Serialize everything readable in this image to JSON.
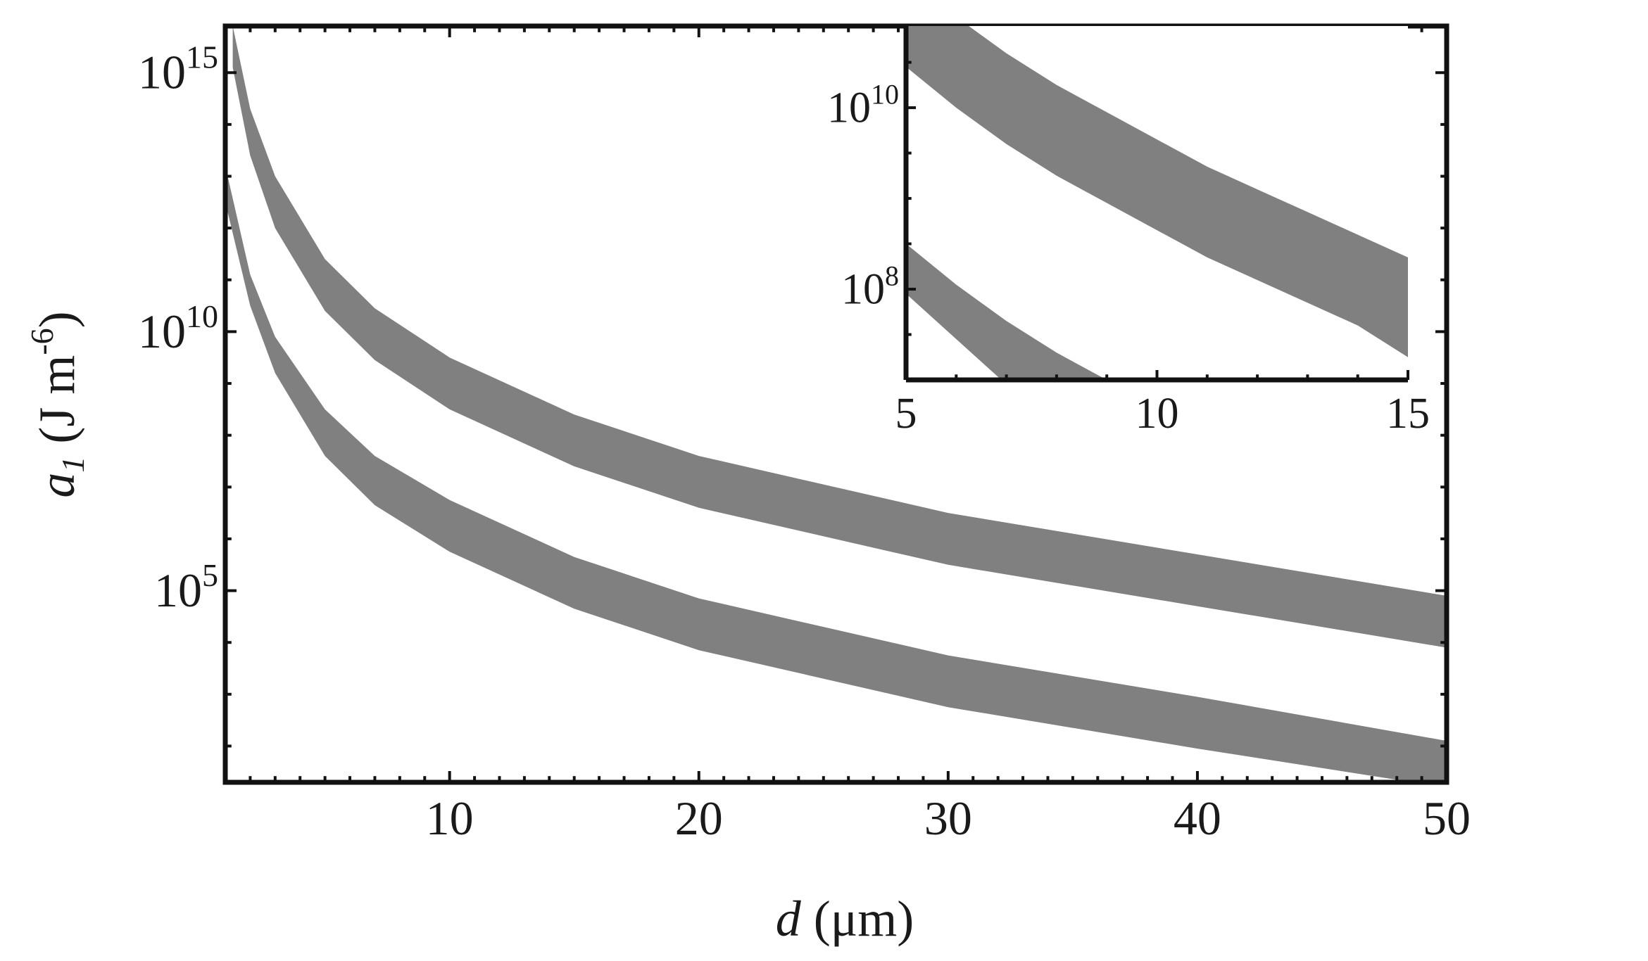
{
  "chart_data": [
    {
      "type": "area",
      "role": "main",
      "xlabel": {
        "symbol": "d",
        "unit": " (μm)"
      },
      "ylabel": {
        "symbol": "a",
        "subscript": "1",
        "unit_prefix": " (J m",
        "unit_exponent": "-6",
        "unit_suffix": ")"
      },
      "xlim": [
        1,
        50
      ],
      "ylim_exponent": [
        1.3,
        15.9
      ],
      "yscale": "log",
      "x_ticks": [
        10,
        20,
        30,
        40,
        50
      ],
      "y_ticks": [
        {
          "base": "10",
          "exponent": "15",
          "value": 15
        },
        {
          "base": "10",
          "exponent": "10",
          "value": 10
        },
        {
          "base": "10",
          "exponent": "5",
          "value": 5
        }
      ],
      "grid": false,
      "legend": "none",
      "fill_color": "#808080",
      "series": [
        {
          "x": [
            1.3,
            2,
            3,
            5,
            7,
            10,
            15,
            20,
            30,
            40,
            50
          ],
          "upper_log10": [
            15.9,
            14.3,
            13.0,
            11.4,
            10.45,
            9.5,
            8.4,
            7.6,
            6.5,
            5.7,
            4.9
          ],
          "lower_log10": [
            15.1,
            13.4,
            12.0,
            10.4,
            9.45,
            8.5,
            7.4,
            6.6,
            5.5,
            4.7,
            3.9
          ]
        },
        {
          "x": [
            1,
            2,
            3,
            5,
            7,
            10,
            15,
            20,
            30,
            40,
            50
          ],
          "upper_log10": [
            13.2,
            11.1,
            9.9,
            8.5,
            7.6,
            6.75,
            5.65,
            4.85,
            3.75,
            2.95,
            2.1
          ],
          "lower_log10": [
            12.5,
            10.5,
            9.2,
            7.6,
            6.65,
            5.75,
            4.65,
            3.85,
            2.75,
            1.95,
            1.2
          ]
        }
      ]
    },
    {
      "type": "area",
      "role": "inset",
      "xlim": [
        5,
        15
      ],
      "ylim_exponent": [
        7.0,
        10.9
      ],
      "yscale": "log",
      "x_ticks": [
        5,
        10,
        15
      ],
      "y_ticks": [
        {
          "base": "10",
          "exponent": "10",
          "value": 10
        },
        {
          "base": "10",
          "exponent": "8",
          "value": 8
        }
      ],
      "grid": false,
      "legend": "none",
      "fill_color": "#808080",
      "series": [
        {
          "x": [
            5,
            6,
            7,
            8,
            9,
            10,
            11,
            12,
            13,
            14,
            15
          ],
          "upper_log10": [
            11.45,
            11.0,
            10.6,
            10.25,
            9.95,
            9.65,
            9.35,
            9.1,
            8.85,
            8.6,
            8.35
          ],
          "lower_log10": [
            10.45,
            10.0,
            9.6,
            9.25,
            8.95,
            8.65,
            8.35,
            8.1,
            7.85,
            7.6,
            7.25
          ]
        },
        {
          "x": [
            5,
            6,
            7,
            8,
            9,
            10,
            11,
            12,
            13,
            14,
            15
          ],
          "upper_log10": [
            8.5,
            8.05,
            7.65,
            7.3,
            7.0,
            6.7,
            6.4,
            6.15,
            5.9,
            5.65,
            5.4
          ],
          "lower_log10": [
            7.95,
            7.45,
            6.95,
            6.6,
            6.3,
            6.0,
            5.7,
            5.45,
            5.2,
            4.95,
            4.7
          ]
        }
      ]
    }
  ]
}
